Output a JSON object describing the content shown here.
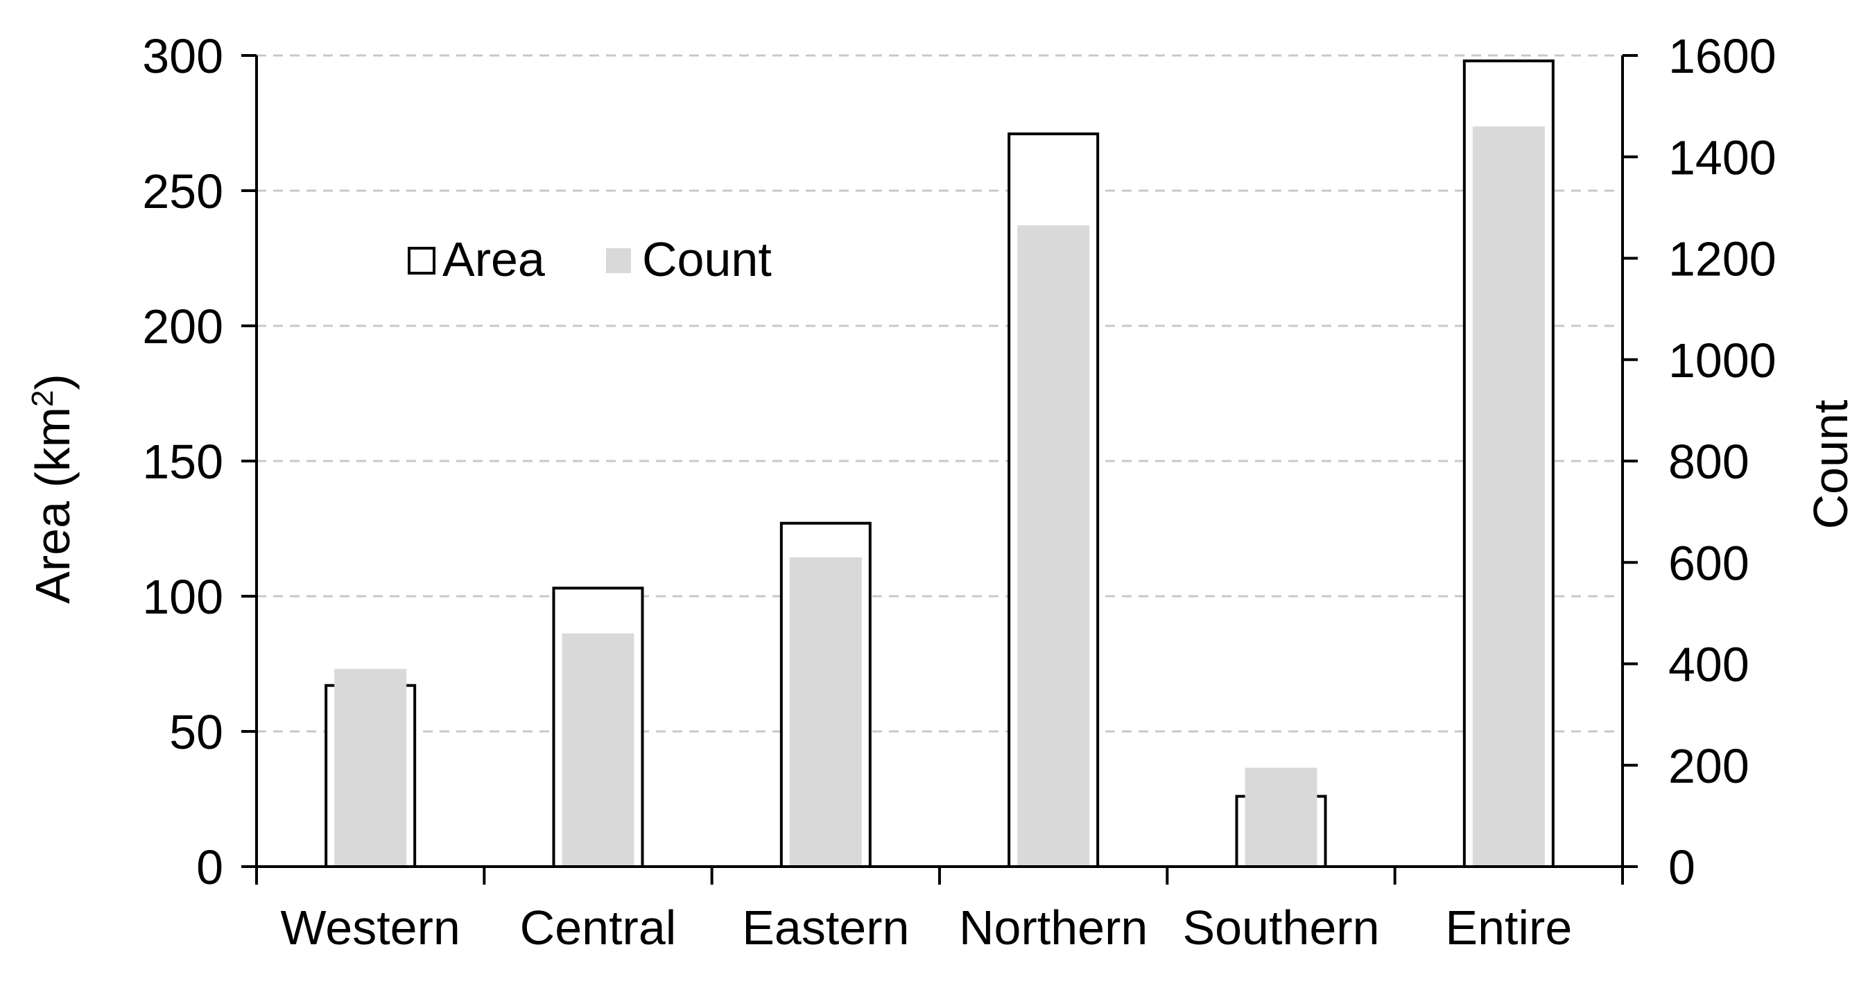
{
  "chart_data": {
    "type": "bar",
    "categories": [
      "Western",
      "Central",
      "Eastern",
      "Northern",
      "Southern",
      "Entire"
    ],
    "series": [
      {
        "name": "Area",
        "axis": "left",
        "style": "white-fill-black-outline",
        "values": [
          67,
          103,
          127,
          271,
          26,
          298
        ]
      },
      {
        "name": "Count",
        "axis": "right",
        "style": "light-gray-fill",
        "values": [
          390,
          460,
          610,
          1265,
          195,
          1460
        ]
      }
    ],
    "ylabel": "Area (km",
    "ylabel_superscript": "2",
    "ylabel_suffix": ")",
    "y2label": "Count",
    "ylim": [
      0,
      300
    ],
    "y2lim": [
      0,
      1600
    ],
    "yticks": [
      "0",
      "50",
      "100",
      "150",
      "200",
      "250",
      "300"
    ],
    "y2ticks": [
      "0",
      "200",
      "400",
      "600",
      "800",
      "1000",
      "1200",
      "1400",
      "1600"
    ],
    "grid": "horizontal-dashed",
    "legend": "upper-left inside plot",
    "colors": {
      "count_fill": "#d9d9d9",
      "area_fill": "#ffffff",
      "area_stroke": "#000000",
      "gridline": "#c8c8c8",
      "axis": "#000000"
    }
  }
}
